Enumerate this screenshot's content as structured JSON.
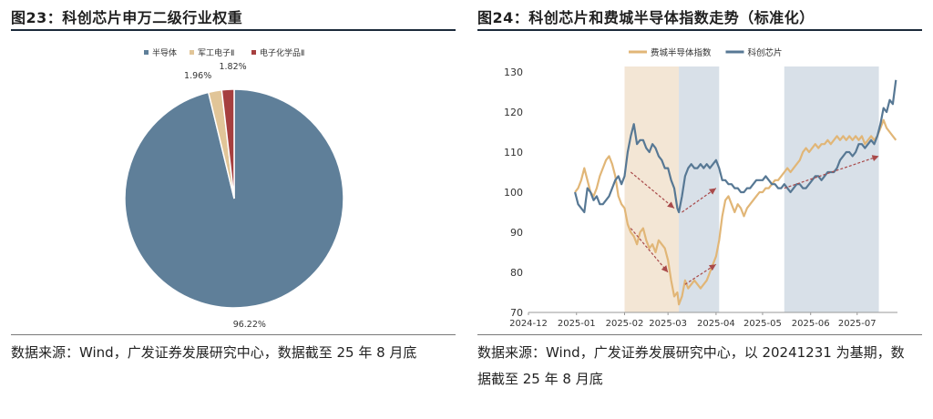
{
  "left": {
    "title": "图23：科创芯片申万二级行业权重",
    "source": "数据来源：Wind，广发证券发展研究中心，数据截至 25 年 8 月底",
    "chart_data": {
      "type": "pie",
      "title": "",
      "legend_position": "top",
      "slices": [
        {
          "name": "半导体",
          "value": 96.22,
          "label": "96.22%",
          "color": "#5f7f99"
        },
        {
          "name": "军工电子Ⅱ",
          "value": 1.96,
          "label": "1.96%",
          "color": "#e1c598"
        },
        {
          "name": "电子化学品Ⅱ",
          "value": 1.82,
          "label": "1.82%",
          "color": "#a63f3f"
        }
      ]
    }
  },
  "right": {
    "title": "图24：科创芯片和费城半导体指数走势（标准化）",
    "source": "数据来源：Wind，广发证券发展研究中心，以 20241231 为基期，数据截至 25 年 8 月底",
    "chart_data": {
      "type": "line",
      "title": "",
      "xlabel": "",
      "ylabel": "",
      "ylim": [
        70,
        130
      ],
      "yticks": [
        70,
        80,
        90,
        100,
        110,
        120,
        130
      ],
      "xticks": [
        "2024-12",
        "2025-01",
        "2025-02",
        "2025-03",
        "2025-04",
        "2025-05",
        "2025-06",
        "2025-07"
      ],
      "legend_position": "top",
      "grid": false,
      "shaded_periods": [
        {
          "start": "2025-02-01",
          "end": "2025-03-08",
          "color": "#f3e6d5"
        },
        {
          "start": "2025-03-08",
          "end": "2025-04-03",
          "color": "#d8e0e8"
        },
        {
          "start": "2025-05-15",
          "end": "2025-07-15",
          "color": "#d8e0e8"
        }
      ],
      "trend_arrows": [
        {
          "from": [
            "2025-02-05",
            105
          ],
          "to": [
            "2025-03-05",
            96
          ]
        },
        {
          "from": [
            "2025-03-10",
            95
          ],
          "to": [
            "2025-04-01",
            101
          ]
        },
        {
          "from": [
            "2025-02-05",
            91
          ],
          "to": [
            "2025-03-01",
            80
          ]
        },
        {
          "from": [
            "2025-03-12",
            77
          ],
          "to": [
            "2025-04-01",
            82
          ]
        },
        {
          "from": [
            "2025-05-15",
            101
          ],
          "to": [
            "2025-07-15",
            109
          ]
        }
      ],
      "series": [
        {
          "name": "费城半导体指数",
          "color": "#e1b677",
          "points": [
            [
              "2024-12-31",
              100
            ],
            [
              "2025-01-02",
              101
            ],
            [
              "2025-01-04",
              103
            ],
            [
              "2025-01-06",
              106
            ],
            [
              "2025-01-08",
              103
            ],
            [
              "2025-01-10",
              100
            ],
            [
              "2025-01-12",
              99
            ],
            [
              "2025-01-14",
              101
            ],
            [
              "2025-01-16",
              104
            ],
            [
              "2025-01-18",
              106
            ],
            [
              "2025-01-20",
              108
            ],
            [
              "2025-01-22",
              109
            ],
            [
              "2025-01-24",
              107
            ],
            [
              "2025-01-26",
              104
            ],
            [
              "2025-01-28",
              99
            ],
            [
              "2025-01-30",
              97
            ],
            [
              "2025-02-01",
              96
            ],
            [
              "2025-02-03",
              92
            ],
            [
              "2025-02-05",
              90
            ],
            [
              "2025-02-07",
              89
            ],
            [
              "2025-02-09",
              87
            ],
            [
              "2025-02-11",
              90
            ],
            [
              "2025-02-13",
              91
            ],
            [
              "2025-02-15",
              88
            ],
            [
              "2025-02-17",
              86
            ],
            [
              "2025-02-19",
              87
            ],
            [
              "2025-02-21",
              85
            ],
            [
              "2025-02-23",
              88
            ],
            [
              "2025-02-25",
              87
            ],
            [
              "2025-02-27",
              86
            ],
            [
              "2025-03-01",
              83
            ],
            [
              "2025-03-03",
              78
            ],
            [
              "2025-03-05",
              74
            ],
            [
              "2025-03-07",
              75
            ],
            [
              "2025-03-08",
              72
            ],
            [
              "2025-03-10",
              74
            ],
            [
              "2025-03-12",
              78
            ],
            [
              "2025-03-14",
              76
            ],
            [
              "2025-03-16",
              77
            ],
            [
              "2025-03-18",
              78
            ],
            [
              "2025-03-20",
              77
            ],
            [
              "2025-03-22",
              76
            ],
            [
              "2025-03-24",
              77
            ],
            [
              "2025-03-26",
              78
            ],
            [
              "2025-03-28",
              80
            ],
            [
              "2025-03-30",
              82
            ],
            [
              "2025-04-01",
              84
            ],
            [
              "2025-04-03",
              88
            ],
            [
              "2025-04-05",
              94
            ],
            [
              "2025-04-07",
              98
            ],
            [
              "2025-04-09",
              99
            ],
            [
              "2025-04-11",
              97
            ],
            [
              "2025-04-13",
              95
            ],
            [
              "2025-04-15",
              97
            ],
            [
              "2025-04-17",
              96
            ],
            [
              "2025-04-19",
              94
            ],
            [
              "2025-04-21",
              96
            ],
            [
              "2025-04-23",
              97
            ],
            [
              "2025-04-25",
              98
            ],
            [
              "2025-04-27",
              99
            ],
            [
              "2025-04-29",
              100
            ],
            [
              "2025-05-01",
              100
            ],
            [
              "2025-05-03",
              101
            ],
            [
              "2025-05-05",
              101
            ],
            [
              "2025-05-07",
              102
            ],
            [
              "2025-05-09",
              103
            ],
            [
              "2025-05-11",
              103
            ],
            [
              "2025-05-13",
              104
            ],
            [
              "2025-05-15",
              105
            ],
            [
              "2025-05-17",
              106
            ],
            [
              "2025-05-19",
              105
            ],
            [
              "2025-05-21",
              106
            ],
            [
              "2025-05-23",
              107
            ],
            [
              "2025-05-25",
              108
            ],
            [
              "2025-05-27",
              110
            ],
            [
              "2025-05-29",
              111
            ],
            [
              "2025-05-31",
              110
            ],
            [
              "2025-06-02",
              111
            ],
            [
              "2025-06-04",
              112
            ],
            [
              "2025-06-06",
              111
            ],
            [
              "2025-06-08",
              112
            ],
            [
              "2025-06-10",
              112
            ],
            [
              "2025-06-12",
              113
            ],
            [
              "2025-06-14",
              112
            ],
            [
              "2025-06-16",
              113
            ],
            [
              "2025-06-18",
              114
            ],
            [
              "2025-06-20",
              113
            ],
            [
              "2025-06-22",
              114
            ],
            [
              "2025-06-24",
              113
            ],
            [
              "2025-06-26",
              114
            ],
            [
              "2025-06-28",
              113
            ],
            [
              "2025-06-30",
              114
            ],
            [
              "2025-07-02",
              113
            ],
            [
              "2025-07-04",
              114
            ],
            [
              "2025-07-06",
              112
            ],
            [
              "2025-07-08",
              113
            ],
            [
              "2025-07-10",
              114
            ],
            [
              "2025-07-12",
              113
            ],
            [
              "2025-07-14",
              114
            ],
            [
              "2025-07-16",
              116
            ],
            [
              "2025-07-18",
              118
            ],
            [
              "2025-07-20",
              116
            ],
            [
              "2025-07-22",
              115
            ],
            [
              "2025-07-24",
              114
            ],
            [
              "2025-07-26",
              113
            ]
          ]
        },
        {
          "name": "科创芯片",
          "color": "#577894",
          "points": [
            [
              "2024-12-31",
              100
            ],
            [
              "2025-01-02",
              97
            ],
            [
              "2025-01-04",
              96
            ],
            [
              "2025-01-06",
              95
            ],
            [
              "2025-01-08",
              101
            ],
            [
              "2025-01-10",
              100
            ],
            [
              "2025-01-12",
              98
            ],
            [
              "2025-01-14",
              99
            ],
            [
              "2025-01-16",
              97
            ],
            [
              "2025-01-18",
              97
            ],
            [
              "2025-01-20",
              98
            ],
            [
              "2025-01-22",
              99
            ],
            [
              "2025-01-24",
              101
            ],
            [
              "2025-01-26",
              103
            ],
            [
              "2025-01-28",
              104
            ],
            [
              "2025-01-30",
              102
            ],
            [
              "2025-02-01",
              104
            ],
            [
              "2025-02-03",
              110
            ],
            [
              "2025-02-05",
              114
            ],
            [
              "2025-02-07",
              117
            ],
            [
              "2025-02-09",
              112
            ],
            [
              "2025-02-11",
              113
            ],
            [
              "2025-02-13",
              113
            ],
            [
              "2025-02-15",
              111
            ],
            [
              "2025-02-17",
              110
            ],
            [
              "2025-02-19",
              112
            ],
            [
              "2025-02-21",
              111
            ],
            [
              "2025-02-23",
              109
            ],
            [
              "2025-02-25",
              108
            ],
            [
              "2025-02-27",
              106
            ],
            [
              "2025-03-01",
              106
            ],
            [
              "2025-03-03",
              103
            ],
            [
              "2025-03-05",
              101
            ],
            [
              "2025-03-07",
              96
            ],
            [
              "2025-03-08",
              95
            ],
            [
              "2025-03-10",
              99
            ],
            [
              "2025-03-12",
              104
            ],
            [
              "2025-03-14",
              106
            ],
            [
              "2025-03-16",
              107
            ],
            [
              "2025-03-18",
              106
            ],
            [
              "2025-03-20",
              106
            ],
            [
              "2025-03-22",
              107
            ],
            [
              "2025-03-24",
              106
            ],
            [
              "2025-03-26",
              107
            ],
            [
              "2025-03-28",
              106
            ],
            [
              "2025-03-30",
              107
            ],
            [
              "2025-04-01",
              108
            ],
            [
              "2025-04-03",
              106
            ],
            [
              "2025-04-05",
              103
            ],
            [
              "2025-04-07",
              103
            ],
            [
              "2025-04-09",
              102
            ],
            [
              "2025-04-11",
              102
            ],
            [
              "2025-04-13",
              101
            ],
            [
              "2025-04-15",
              101
            ],
            [
              "2025-04-17",
              100
            ],
            [
              "2025-04-19",
              100
            ],
            [
              "2025-04-21",
              101
            ],
            [
              "2025-04-23",
              101
            ],
            [
              "2025-04-25",
              102
            ],
            [
              "2025-04-27",
              103
            ],
            [
              "2025-04-29",
              103
            ],
            [
              "2025-05-01",
              103
            ],
            [
              "2025-05-03",
              104
            ],
            [
              "2025-05-05",
              103
            ],
            [
              "2025-05-07",
              102
            ],
            [
              "2025-05-09",
              102
            ],
            [
              "2025-05-11",
              101
            ],
            [
              "2025-05-13",
              101
            ],
            [
              "2025-05-15",
              102
            ],
            [
              "2025-05-17",
              101
            ],
            [
              "2025-05-19",
              100
            ],
            [
              "2025-05-21",
              101
            ],
            [
              "2025-05-23",
              102
            ],
            [
              "2025-05-25",
              102
            ],
            [
              "2025-05-27",
              101
            ],
            [
              "2025-05-29",
              101
            ],
            [
              "2025-05-31",
              102
            ],
            [
              "2025-06-02",
              103
            ],
            [
              "2025-06-04",
              104
            ],
            [
              "2025-06-06",
              104
            ],
            [
              "2025-06-08",
              103
            ],
            [
              "2025-06-10",
              104
            ],
            [
              "2025-06-12",
              105
            ],
            [
              "2025-06-14",
              105
            ],
            [
              "2025-06-16",
              105
            ],
            [
              "2025-06-18",
              106
            ],
            [
              "2025-06-20",
              108
            ],
            [
              "2025-06-22",
              109
            ],
            [
              "2025-06-24",
              110
            ],
            [
              "2025-06-26",
              110
            ],
            [
              "2025-06-28",
              109
            ],
            [
              "2025-06-30",
              110
            ],
            [
              "2025-07-02",
              112
            ],
            [
              "2025-07-04",
              112
            ],
            [
              "2025-07-06",
              111
            ],
            [
              "2025-07-08",
              112
            ],
            [
              "2025-07-10",
              113
            ],
            [
              "2025-07-12",
              112
            ],
            [
              "2025-07-14",
              114
            ],
            [
              "2025-07-16",
              117
            ],
            [
              "2025-07-18",
              121
            ],
            [
              "2025-07-20",
              120
            ],
            [
              "2025-07-22",
              123
            ],
            [
              "2025-07-24",
              122
            ],
            [
              "2025-07-26",
              128
            ]
          ]
        }
      ]
    }
  }
}
